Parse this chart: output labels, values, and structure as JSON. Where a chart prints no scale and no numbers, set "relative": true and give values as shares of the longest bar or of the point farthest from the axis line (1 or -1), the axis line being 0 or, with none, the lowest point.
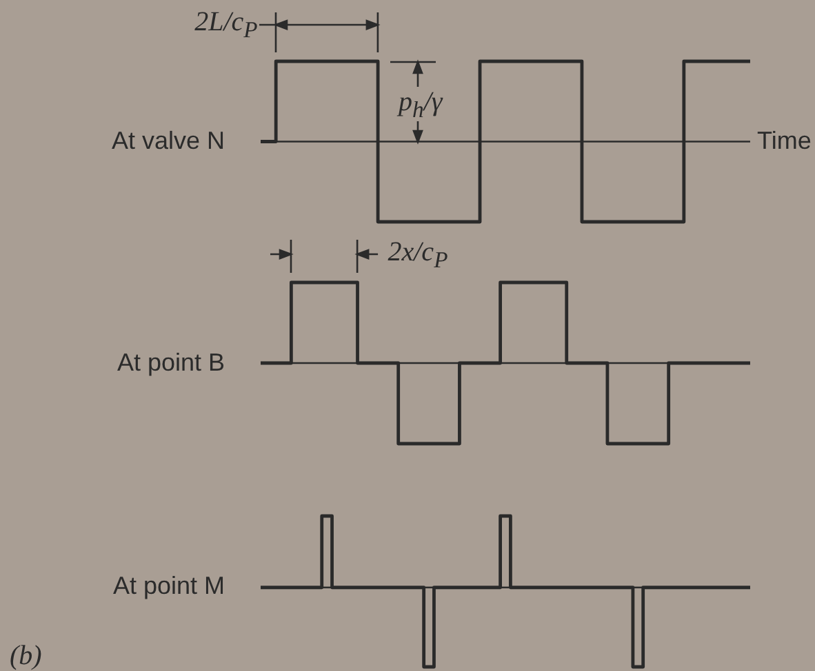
{
  "chart_data": [
    {
      "type": "step",
      "ylabel": "At valve N",
      "xlabel": "Time",
      "annotations": [
        "2L/c$_{P}$",
        "p$_{h}$/γ"
      ],
      "relative": true,
      "color": "#2a2a2a",
      "categories": [
        null,
        null,
        null,
        null,
        null,
        null,
        null,
        null,
        null,
        null,
        null,
        null,
        null,
        null,
        null,
        null,
        null,
        null,
        null,
        null,
        null,
        null,
        null,
        null,
        null,
        null,
        null,
        null,
        null,
        null,
        null,
        null,
        null,
        null,
        null,
        null,
        null,
        null,
        null,
        null,
        null,
        null,
        null,
        null,
        null,
        null,
        null,
        null,
        null,
        null,
        null,
        null,
        null,
        null,
        null,
        null,
        null,
        null,
        null,
        null,
        null,
        null,
        null,
        null,
        null,
        null,
        null,
        null,
        null,
        null,
        null,
        null,
        null,
        null,
        null,
        null,
        null,
        null,
        null,
        null,
        null,
        null,
        null,
        null,
        null,
        null,
        null,
        null,
        null,
        null,
        null,
        null,
        null,
        null,
        null,
        null,
        null
      ],
      "values": [
        0,
        0,
        0,
        1,
        1,
        1,
        1,
        1,
        1,
        1,
        1,
        1,
        1,
        1,
        1,
        1,
        1,
        1,
        1,
        1,
        1,
        1,
        1,
        -1,
        -1,
        -1,
        -1,
        -1,
        -1,
        -1,
        -1,
        -1,
        -1,
        -1,
        -1,
        -1,
        -1,
        -1,
        -1,
        -1,
        -1,
        -1,
        -1,
        1,
        1,
        1,
        1,
        1,
        1,
        1,
        1,
        1,
        1,
        1,
        1,
        1,
        1,
        1,
        1,
        1,
        1,
        1,
        1,
        -1,
        -1,
        -1,
        -1,
        -1,
        -1,
        -1,
        -1,
        -1,
        -1,
        -1,
        -1,
        -1,
        -1,
        -1,
        -1,
        -1,
        -1,
        -1,
        -1,
        1,
        1,
        1,
        1,
        1,
        1,
        1,
        1,
        1,
        1,
        1,
        1,
        1,
        1
      ]
    },
    {
      "type": "step",
      "ylabel": "At point B",
      "annotations": [
        "2x/c$_{P}$"
      ],
      "relative": true,
      "color": "#2a2a2a",
      "categories": [
        null,
        null,
        null,
        null,
        null,
        null,
        null,
        null,
        null,
        null,
        null,
        null,
        null,
        null,
        null,
        null,
        null,
        null,
        null,
        null,
        null,
        null,
        null,
        null,
        null,
        null,
        null,
        null,
        null,
        null,
        null,
        null,
        null,
        null,
        null,
        null,
        null,
        null,
        null,
        null,
        null,
        null,
        null,
        null,
        null,
        null,
        null,
        null,
        null,
        null,
        null,
        null,
        null,
        null,
        null,
        null,
        null,
        null,
        null,
        null,
        null,
        null,
        null,
        null,
        null,
        null,
        null,
        null,
        null,
        null,
        null,
        null,
        null,
        null,
        null,
        null,
        null,
        null,
        null,
        null,
        null,
        null,
        null,
        null,
        null,
        null,
        null,
        null,
        null,
        null,
        null,
        null,
        null,
        null,
        null,
        null,
        null
      ],
      "values": [
        0,
        0,
        0,
        0,
        0,
        0,
        1,
        1,
        1,
        1,
        1,
        1,
        1,
        1,
        1,
        1,
        1,
        1,
        1,
        0,
        0,
        0,
        0,
        0,
        0,
        0,
        0,
        -1,
        -1,
        -1,
        -1,
        -1,
        -1,
        -1,
        -1,
        -1,
        -1,
        -1,
        -1,
        0,
        0,
        0,
        0,
        0,
        0,
        0,
        0,
        1,
        1,
        1,
        1,
        1,
        1,
        1,
        1,
        1,
        1,
        1,
        1,
        1,
        0,
        0,
        0,
        0,
        0,
        0,
        0,
        0,
        -1,
        -1,
        -1,
        -1,
        -1,
        -1,
        -1,
        -1,
        -1,
        -1,
        -1,
        -1,
        0,
        0,
        0,
        0,
        0,
        0,
        0,
        0,
        0,
        0,
        0,
        0,
        0,
        0,
        0,
        0,
        0
      ]
    },
    {
      "type": "step",
      "ylabel": "At point M",
      "annotations": [
        "(b)"
      ],
      "relative": true,
      "color": "#2a2a2a",
      "categories": [
        null,
        null,
        null,
        null,
        null,
        null,
        null,
        null,
        null,
        null,
        null,
        null,
        null,
        null,
        null,
        null,
        null,
        null,
        null,
        null,
        null,
        null,
        null,
        null,
        null,
        null,
        null,
        null,
        null,
        null,
        null,
        null,
        null,
        null,
        null,
        null,
        null,
        null,
        null,
        null,
        null,
        null,
        null,
        null,
        null,
        null,
        null,
        null,
        null,
        null,
        null,
        null,
        null,
        null,
        null,
        null,
        null,
        null,
        null,
        null,
        null,
        null,
        null,
        null,
        null,
        null,
        null,
        null,
        null,
        null,
        null,
        null,
        null,
        null,
        null,
        null,
        null,
        null,
        null,
        null,
        null,
        null,
        null,
        null,
        null,
        null,
        null,
        null,
        null,
        null,
        null,
        null,
        null,
        null,
        null,
        null,
        null
      ],
      "values": [
        0,
        0,
        0,
        0,
        0,
        0,
        0,
        0,
        0,
        0,
        0,
        0,
        0.9,
        0.9,
        0,
        0,
        0,
        0,
        0,
        0,
        0,
        0,
        0,
        0,
        0,
        0,
        0,
        0,
        0,
        0,
        0,
        0,
        -1,
        -1,
        0,
        0,
        0,
        0,
        0,
        0,
        0,
        0,
        0,
        0,
        0,
        0,
        0,
        0.9,
        0.9,
        0,
        0,
        0,
        0,
        0,
        0,
        0,
        0,
        0,
        0,
        0,
        0,
        0,
        0,
        0,
        0,
        0,
        0,
        0,
        0,
        0,
        0,
        0,
        0,
        -1,
        -1,
        0,
        0,
        0,
        0,
        0,
        0,
        0,
        0,
        0,
        0,
        0,
        0,
        0,
        0,
        0,
        0,
        0,
        0,
        0,
        0,
        0,
        0
      ]
    }
  ]
}
